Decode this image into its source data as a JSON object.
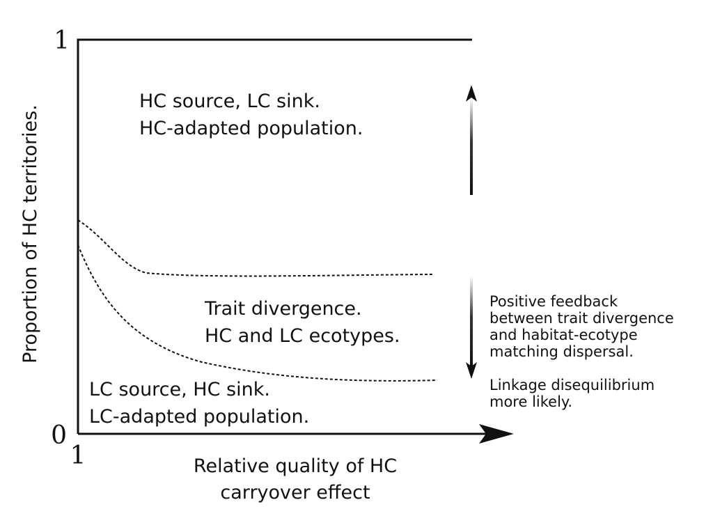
{
  "axes": {
    "y_top_tick": "1",
    "y_bottom_tick": "0",
    "x_left_tick": "1",
    "y_label": "Proportion of HC territories.",
    "x_label_line1": "Relative quality of HC",
    "x_label_line2": "carryover effect"
  },
  "regions": {
    "top": {
      "line1": "HC source, LC sink.",
      "line2": "HC-adapted population."
    },
    "middle": {
      "line1": "Trait divergence.",
      "line2": "HC and LC ecotypes."
    },
    "bottom": {
      "line1": "LC source, HC sink.",
      "line2": "LC-adapted population."
    }
  },
  "annotation": {
    "feedback_lines": [
      "Positive feedback",
      "between trait divergence",
      "and habitat-ecotype",
      "matching dispersal."
    ],
    "linkage_lines": [
      "Linkage disequilibrium",
      "more likely."
    ]
  },
  "colors": {
    "ink": "#111111",
    "background": "#ffffff"
  }
}
